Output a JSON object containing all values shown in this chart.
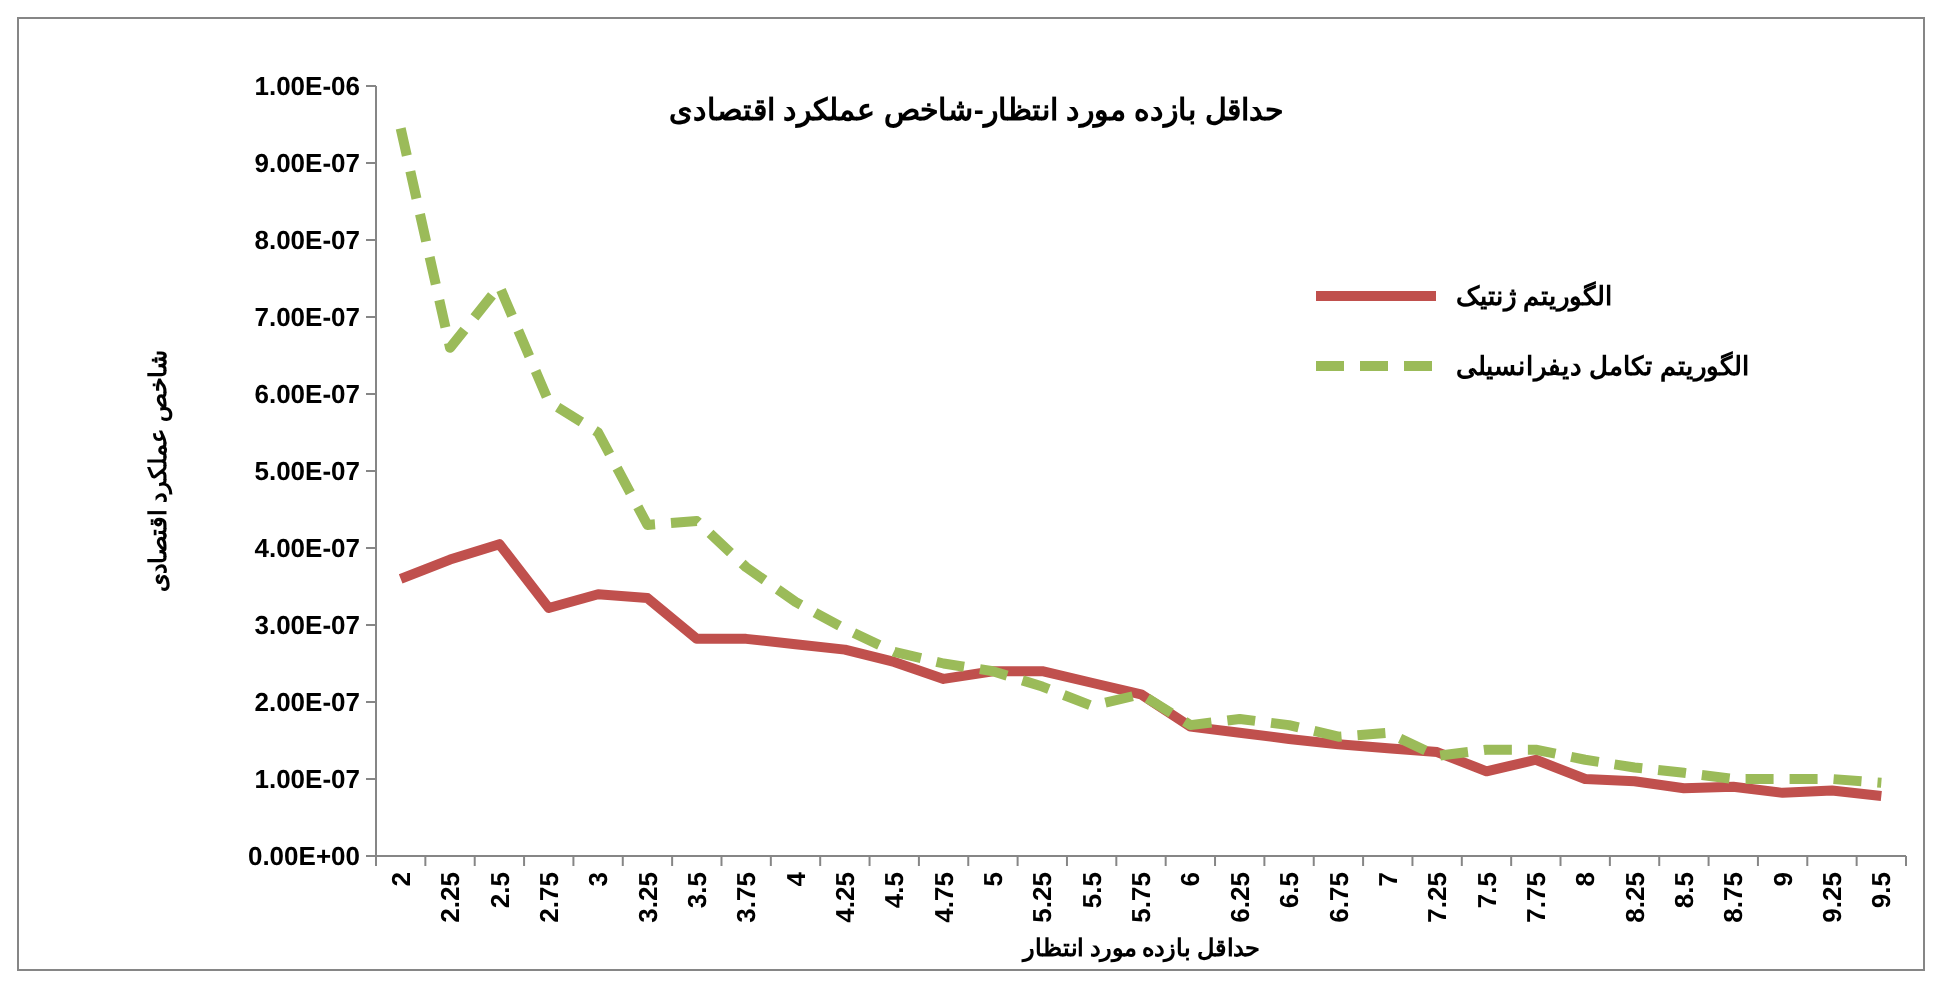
{
  "chart_data": {
    "type": "line",
    "title": "حداقل بازده مورد انتظار-شاخص عملکرد اقتصادی",
    "xlabel": "حداقل بازده مورد انتظار",
    "ylabel": "شاخص عملکرد اقتصادی",
    "categories": [
      "2",
      "2.25",
      "2.5",
      "2.75",
      "3",
      "3.25",
      "3.5",
      "3.75",
      "4",
      "4.25",
      "4.5",
      "4.75",
      "5",
      "5.25",
      "5.5",
      "5.75",
      "6",
      "6.25",
      "6.5",
      "6.75",
      "7",
      "7.25",
      "7.5",
      "7.75",
      "8",
      "8.25",
      "8.5",
      "8.75",
      "9",
      "9.25",
      "9.5"
    ],
    "series": [
      {
        "name": "الگوریتم ژنتیک",
        "color": "#c0504d",
        "line_style": "solid",
        "values": [
          3.6e-07,
          3.85e-07,
          4.05e-07,
          3.22e-07,
          3.4e-07,
          3.35e-07,
          2.82e-07,
          2.82e-07,
          2.75e-07,
          2.68e-07,
          2.52e-07,
          2.3e-07,
          2.4e-07,
          2.4e-07,
          2.25e-07,
          2.1e-07,
          1.68e-07,
          1.6e-07,
          1.52e-07,
          1.45e-07,
          1.4e-07,
          1.35e-07,
          1.1e-07,
          1.25e-07,
          1e-07,
          9.7e-08,
          8.8e-08,
          9e-08,
          8.2e-08,
          8.5e-08,
          7.8e-08
        ]
      },
      {
        "name": "الگوریتم تکامل دیفرانسیلی",
        "color": "#9bbb59",
        "line_style": "dashed",
        "values": [
          9.45e-07,
          6.6e-07,
          7.4e-07,
          5.9e-07,
          5.5e-07,
          4.3e-07,
          4.35e-07,
          3.75e-07,
          3.3e-07,
          2.95e-07,
          2.65e-07,
          2.5e-07,
          2.4e-07,
          2.2e-07,
          1.95e-07,
          2.1e-07,
          1.7e-07,
          1.78e-07,
          1.7e-07,
          1.55e-07,
          1.6e-07,
          1.3e-07,
          1.38e-07,
          1.38e-07,
          1.25e-07,
          1.15e-07,
          1.08e-07,
          1e-07,
          1e-07,
          1e-07,
          9.5e-08
        ]
      }
    ],
    "ylim": [
      0,
      1e-06
    ],
    "yticks": [
      {
        "value": 0,
        "label": "0.00E+00"
      },
      {
        "value": 1e-07,
        "label": "1.00E-07"
      },
      {
        "value": 2e-07,
        "label": "2.00E-07"
      },
      {
        "value": 3e-07,
        "label": "3.00E-07"
      },
      {
        "value": 4e-07,
        "label": "4.00E-07"
      },
      {
        "value": 5e-07,
        "label": "5.00E-07"
      },
      {
        "value": 6e-07,
        "label": "6.00E-07"
      },
      {
        "value": 7e-07,
        "label": "7.00E-07"
      },
      {
        "value": 8e-07,
        "label": "8.00E-07"
      },
      {
        "value": 9e-07,
        "label": "9.00E-07"
      },
      {
        "value": 1e-06,
        "label": "1.00E-06"
      }
    ],
    "grid": false,
    "legend": "right",
    "marker": "none"
  }
}
